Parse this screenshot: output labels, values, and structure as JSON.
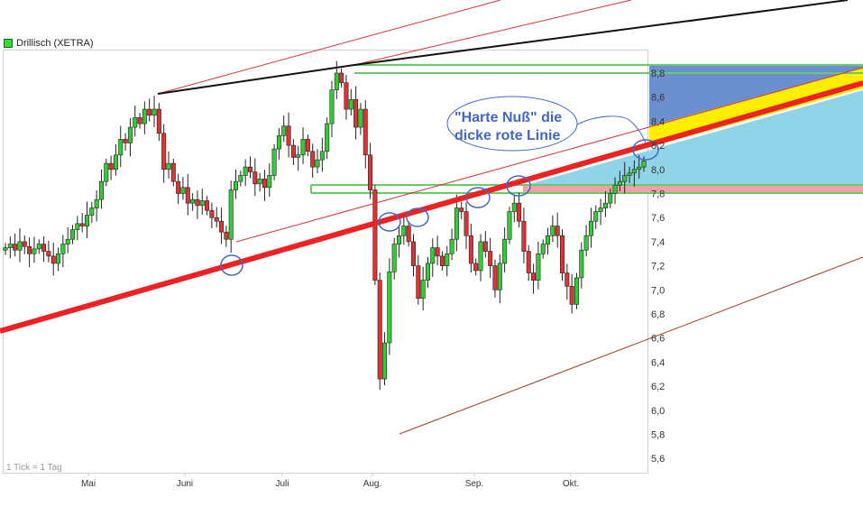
{
  "legend": {
    "label": "Drillisch (XETRA)",
    "color": "#33dd33"
  },
  "footnote": "1 Tick = 1 Tag",
  "annotation": {
    "line1": "\"Harte Nuß\"  die",
    "line2": "dicke rote Linie",
    "color": "#4466cc"
  },
  "chart_data": {
    "type": "candlestick",
    "title": "Drillisch (XETRA)",
    "ylim": [
      5.5,
      8.9
    ],
    "y_ticks": [
      "8,8",
      "8,6",
      "8,4",
      "8,2",
      "8,0",
      "7,8",
      "7,6",
      "7,4",
      "7,2",
      "7,0",
      "6,8",
      "6,6",
      "6,4",
      "6,2",
      "6,0",
      "5,8",
      "5,6"
    ],
    "y_tick_values": [
      8.8,
      8.6,
      8.4,
      8.2,
      8.0,
      7.8,
      7.6,
      7.4,
      7.2,
      7.0,
      6.8,
      6.6,
      6.4,
      6.2,
      6.0,
      5.8,
      5.6
    ],
    "x_ticks": [
      "Mai",
      "Juni",
      "Juli",
      "Aug.",
      "Sep.",
      "Okt."
    ],
    "grid": false,
    "colors": {
      "up": "#33cc33",
      "down": "#dd3333",
      "trendline": "#ee2222",
      "resistance_zone": "#6b8fcf",
      "band": "#ffee00",
      "support_zone": "#90d4e8",
      "pink_band": "#f4a0a8",
      "horizontal": "#66cc66"
    },
    "closes": [
      7.35,
      7.38,
      7.33,
      7.4,
      7.36,
      7.3,
      7.34,
      7.38,
      7.32,
      7.28,
      7.22,
      7.3,
      7.38,
      7.42,
      7.5,
      7.55,
      7.53,
      7.62,
      7.68,
      7.75,
      7.9,
      8.05,
      8.0,
      8.12,
      8.25,
      8.22,
      8.35,
      8.43,
      8.38,
      8.5,
      8.45,
      8.5,
      8.3,
      8.0,
      8.05,
      7.9,
      7.8,
      7.85,
      7.72,
      7.75,
      7.7,
      7.74,
      7.66,
      7.6,
      7.57,
      7.48,
      7.42,
      7.83,
      7.9,
      7.95,
      8.02,
      7.98,
      7.88,
      7.92,
      7.85,
      7.95,
      8.17,
      8.28,
      8.36,
      8.2,
      8.1,
      8.12,
      8.25,
      8.15,
      8.02,
      8.08,
      8.15,
      8.38,
      8.66,
      8.8,
      8.72,
      8.5,
      8.58,
      8.35,
      8.5,
      8.12,
      7.83,
      7.08,
      6.26,
      6.56,
      7.15,
      7.38,
      7.45,
      7.53,
      7.4,
      7.2,
      6.93,
      7.08,
      7.22,
      7.35,
      7.28,
      7.2,
      7.3,
      7.42,
      7.68,
      7.65,
      7.45,
      7.22,
      7.16,
      7.4,
      7.32,
      7.2,
      7.0,
      7.22,
      7.42,
      7.65,
      7.72,
      7.57,
      7.32,
      7.14,
      7.08,
      7.3,
      7.38,
      7.45,
      7.53,
      7.45,
      7.14,
      7.03,
      6.88,
      7.1,
      7.33,
      7.45,
      7.57,
      7.65,
      7.68,
      7.72,
      7.8,
      7.87,
      7.9,
      7.95,
      7.97,
      8.0,
      8.02,
      8.07
    ]
  }
}
